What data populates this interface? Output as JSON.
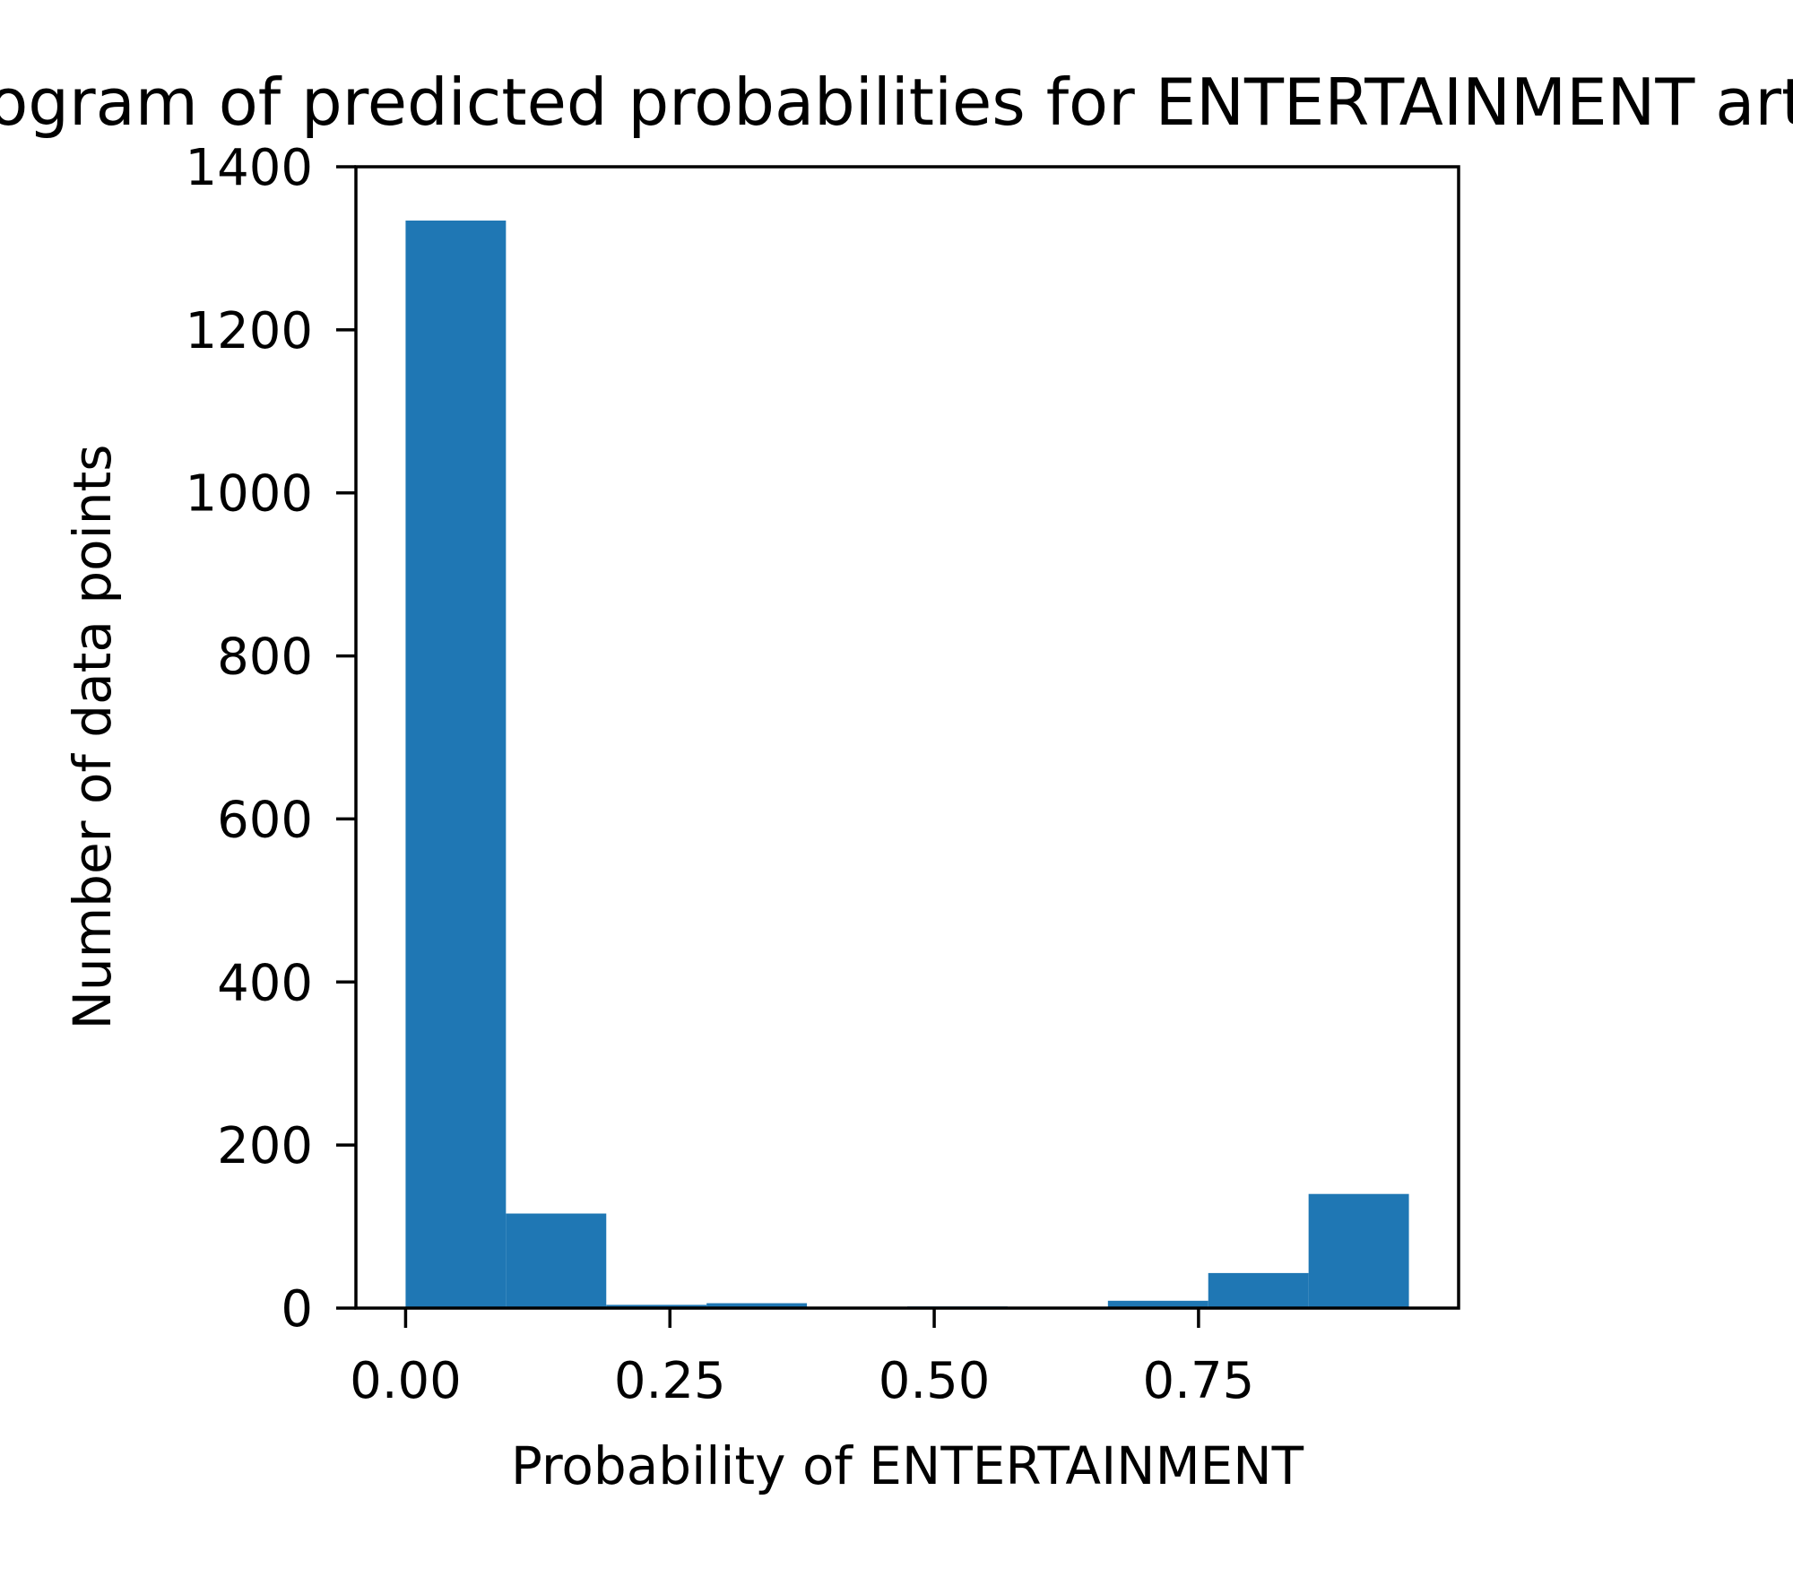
{
  "chart_data": {
    "type": "bar",
    "title": "Histogram of predicted probabilities for ENTERTAINMENT articles",
    "xlabel": "Probability of ENTERTAINMENT",
    "ylabel": "Number of data points",
    "xlim": [
      -0.047,
      0.996
    ],
    "ylim": [
      0,
      1400
    ],
    "xticks": [
      {
        "value": 0.0,
        "label": "0.00"
      },
      {
        "value": 0.25,
        "label": "0.25"
      },
      {
        "value": 0.5,
        "label": "0.50"
      },
      {
        "value": 0.75,
        "label": "0.75"
      }
    ],
    "yticks": [
      {
        "value": 0,
        "label": "0"
      },
      {
        "value": 200,
        "label": "200"
      },
      {
        "value": 400,
        "label": "400"
      },
      {
        "value": 600,
        "label": "600"
      },
      {
        "value": 800,
        "label": "800"
      },
      {
        "value": 1000,
        "label": "1000"
      },
      {
        "value": 1200,
        "label": "1200"
      },
      {
        "value": 1400,
        "label": "1400"
      }
    ],
    "bin_edges": [
      0.0,
      0.0949,
      0.1898,
      0.2847,
      0.3796,
      0.4745,
      0.5694,
      0.6643,
      0.7592,
      0.8541,
      0.949
    ],
    "values": [
      1334,
      116,
      4,
      6,
      0,
      2,
      0,
      9,
      43,
      140
    ],
    "bar_color": "#1f77b4",
    "grid": false,
    "legend": "none"
  }
}
